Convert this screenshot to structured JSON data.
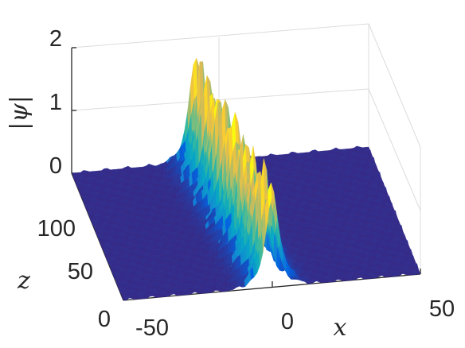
{
  "chart_data": {
    "type": "surface3d",
    "zlabel": "|ψ|",
    "xlabel": "x",
    "ylabel": "z",
    "xlim": [
      -50,
      50
    ],
    "ylim": [
      0,
      150
    ],
    "zlim": [
      0,
      2
    ],
    "x_ticks": [
      "-50",
      "0",
      "50"
    ],
    "y_ticks": [
      "0",
      "50",
      "100"
    ],
    "z_ticks": [
      "0",
      "1",
      "2"
    ],
    "colormap": "parula",
    "colormap_colors": [
      "#352a87",
      "#0363e1",
      "#1485d4",
      "#06a7c6",
      "#38b99e",
      "#92bf73",
      "#d9ba56",
      "#fcce2e",
      "#f9fb0e"
    ],
    "grid": true,
    "description_values": {
      "background_level": 0.0,
      "peak_center_x_at_z0": 0,
      "peak_center_x_at_z150": -8,
      "peak_max": 1.75
    }
  }
}
